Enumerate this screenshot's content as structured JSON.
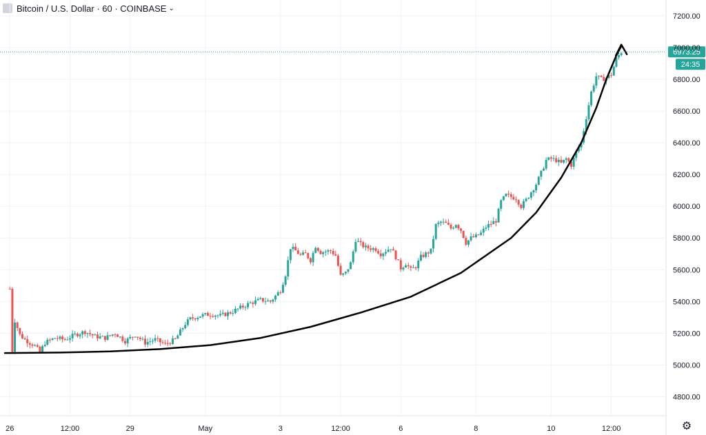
{
  "header": {
    "title": "Bitcoin / U.S. Dollar · 60 · COINBASE",
    "menu_icon": "chevron-down-icon"
  },
  "price_label": {
    "value": "6973.25",
    "countdown": "24:35",
    "color": "#26a69a"
  },
  "settings_icon": "gear-icon",
  "colors": {
    "up": "#26a69a",
    "down": "#ef5350",
    "grid": "#f0f3fa",
    "trend": "#000000"
  },
  "chart_data": {
    "type": "candlestick",
    "title": "Bitcoin / U.S. Dollar · 60 · COINBASE",
    "ylim": [
      4680,
      7300
    ],
    "yticks": [
      4800,
      5000,
      5200,
      5400,
      5600,
      5800,
      6000,
      6200,
      6400,
      6600,
      6800,
      7000,
      7200
    ],
    "ytick_labels": [
      "4800.00",
      "5000.00",
      "5200.00",
      "5400.00",
      "5600.00",
      "5800.00",
      "6000.00",
      "6200.00",
      "6400.00",
      "6600.00",
      "6800.00",
      "7000.00",
      "7200.00"
    ],
    "xticks": [
      {
        "label": "26",
        "t": 0
      },
      {
        "label": "12:00",
        "t": 12
      },
      {
        "label": "29",
        "t": 24
      },
      {
        "label": "May",
        "t": 39
      },
      {
        "label": "3",
        "t": 54
      },
      {
        "label": "12:00",
        "t": 66
      },
      {
        "label": "6",
        "t": 78
      },
      {
        "label": "8",
        "t": 93
      },
      {
        "label": "10",
        "t": 108
      },
      {
        "label": "12:00",
        "t": 120
      }
    ],
    "x_range": [
      -1,
      125
    ],
    "last_price": 6973.25,
    "anchors": [
      [
        0,
        5480
      ],
      [
        0.5,
        5090
      ],
      [
        1,
        5280
      ],
      [
        2,
        5190
      ],
      [
        3,
        5160
      ],
      [
        5,
        5120
      ],
      [
        6,
        5080
      ],
      [
        7,
        5140
      ],
      [
        9,
        5170
      ],
      [
        11,
        5160
      ],
      [
        13,
        5190
      ],
      [
        15,
        5210
      ],
      [
        17,
        5180
      ],
      [
        19,
        5170
      ],
      [
        21,
        5200
      ],
      [
        23,
        5150
      ],
      [
        25,
        5190
      ],
      [
        27,
        5140
      ],
      [
        29,
        5160
      ],
      [
        31,
        5130
      ],
      [
        33,
        5160
      ],
      [
        35,
        5260
      ],
      [
        36,
        5290
      ],
      [
        38,
        5310
      ],
      [
        40,
        5320
      ],
      [
        42,
        5310
      ],
      [
        44,
        5330
      ],
      [
        46,
        5360
      ],
      [
        48,
        5390
      ],
      [
        50,
        5410
      ],
      [
        52,
        5400
      ],
      [
        54,
        5470
      ],
      [
        55,
        5570
      ],
      [
        56,
        5740
      ],
      [
        57,
        5720
      ],
      [
        58,
        5690
      ],
      [
        59,
        5700
      ],
      [
        60,
        5660
      ],
      [
        61,
        5750
      ],
      [
        62,
        5710
      ],
      [
        64,
        5720
      ],
      [
        65,
        5690
      ],
      [
        66,
        5560
      ],
      [
        67,
        5580
      ],
      [
        68,
        5640
      ],
      [
        69,
        5790
      ],
      [
        70,
        5760
      ],
      [
        71,
        5740
      ],
      [
        73,
        5730
      ],
      [
        74,
        5700
      ],
      [
        76,
        5740
      ],
      [
        77,
        5680
      ],
      [
        78,
        5610
      ],
      [
        79,
        5640
      ],
      [
        80,
        5600
      ],
      [
        81,
        5620
      ],
      [
        82,
        5680
      ],
      [
        83,
        5700
      ],
      [
        84,
        5720
      ],
      [
        85,
        5880
      ],
      [
        86,
        5900
      ],
      [
        87,
        5890
      ],
      [
        88,
        5860
      ],
      [
        89,
        5890
      ],
      [
        90,
        5850
      ],
      [
        91,
        5770
      ],
      [
        92,
        5800
      ],
      [
        93,
        5810
      ],
      [
        94,
        5830
      ],
      [
        95,
        5870
      ],
      [
        97,
        5910
      ],
      [
        98,
        6030
      ],
      [
        99,
        6070
      ],
      [
        100,
        6060
      ],
      [
        101,
        6050
      ],
      [
        102,
        6000
      ],
      [
        103,
        6040
      ],
      [
        104,
        6090
      ],
      [
        105,
        6140
      ],
      [
        106,
        6210
      ],
      [
        107,
        6290
      ],
      [
        108,
        6300
      ],
      [
        109,
        6290
      ],
      [
        110,
        6270
      ],
      [
        111,
        6300
      ],
      [
        112,
        6260
      ],
      [
        113,
        6340
      ],
      [
        114,
        6400
      ],
      [
        115,
        6560
      ],
      [
        116,
        6720
      ],
      [
        117,
        6820
      ],
      [
        118,
        6800
      ],
      [
        119,
        6810
      ],
      [
        120,
        6830
      ],
      [
        121,
        6930
      ],
      [
        122,
        6973
      ]
    ],
    "trend_curve": [
      [
        -1,
        5075
      ],
      [
        10,
        5078
      ],
      [
        20,
        5085
      ],
      [
        30,
        5100
      ],
      [
        40,
        5125
      ],
      [
        50,
        5170
      ],
      [
        60,
        5240
      ],
      [
        70,
        5330
      ],
      [
        80,
        5430
      ],
      [
        90,
        5580
      ],
      [
        100,
        5800
      ],
      [
        105,
        5960
      ],
      [
        110,
        6180
      ],
      [
        114,
        6400
      ],
      [
        117,
        6620
      ],
      [
        119,
        6800
      ],
      [
        121,
        6950
      ],
      [
        122,
        7010
      ]
    ]
  }
}
